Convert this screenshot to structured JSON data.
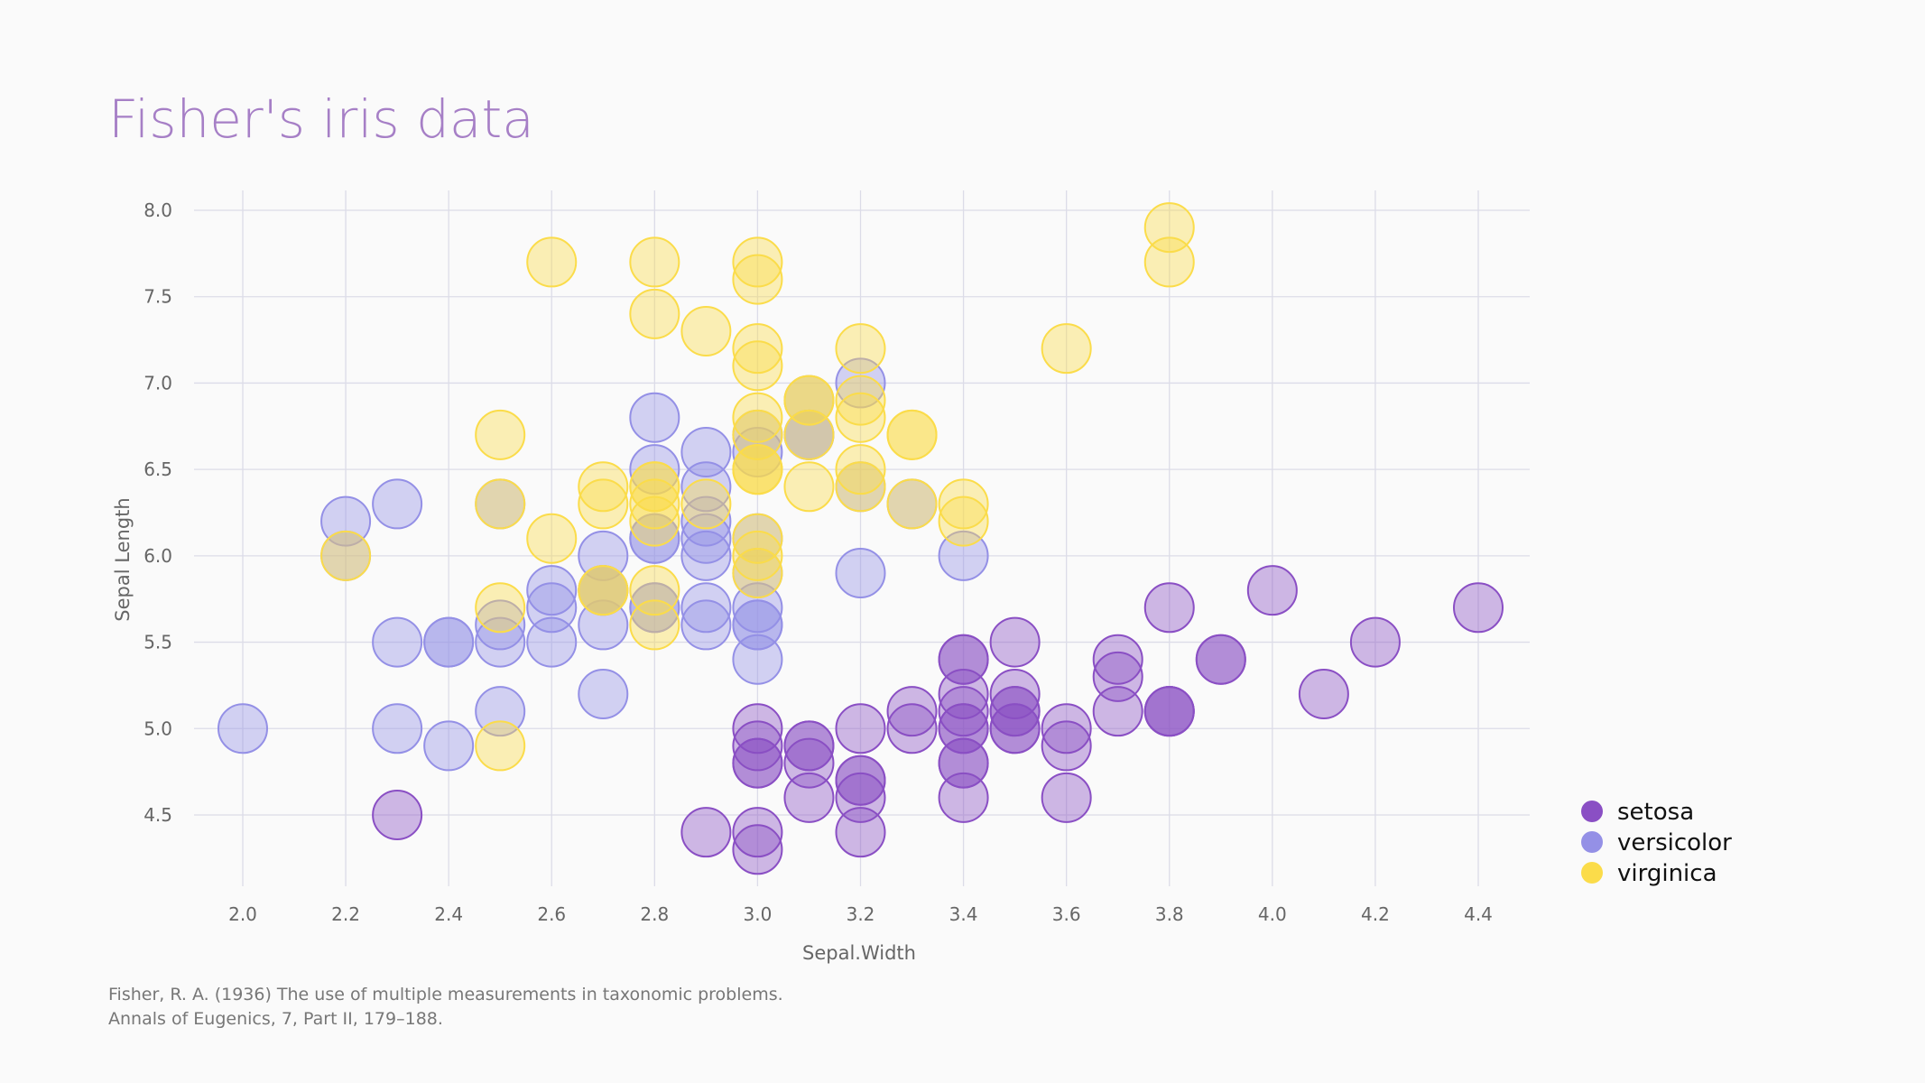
{
  "chart_data": {
    "type": "scatter",
    "title": "Fisher's iris data",
    "xlabel": "Sepal.Width",
    "ylabel": "Sepal Length",
    "xlim": [
      1.9,
      4.5
    ],
    "ylim": [
      4.1,
      8.1
    ],
    "xticks": [
      "2.0",
      "2.2",
      "2.4",
      "2.6",
      "2.8",
      "3.0",
      "3.2",
      "3.4",
      "3.6",
      "3.8",
      "4.0",
      "4.2",
      "4.4"
    ],
    "yticks": [
      "4.5",
      "5.0",
      "5.5",
      "6.0",
      "6.5",
      "7.0",
      "7.5",
      "8.0"
    ],
    "grid": true,
    "legend_position": "right",
    "series": [
      {
        "name": "setosa",
        "color": "#8a4fc4",
        "points": [
          [
            3.5,
            5.1
          ],
          [
            3.0,
            4.9
          ],
          [
            3.2,
            4.7
          ],
          [
            3.1,
            4.6
          ],
          [
            3.6,
            5.0
          ],
          [
            3.9,
            5.4
          ],
          [
            3.4,
            4.6
          ],
          [
            3.4,
            5.0
          ],
          [
            2.9,
            4.4
          ],
          [
            3.1,
            4.9
          ],
          [
            3.7,
            5.4
          ],
          [
            3.4,
            4.8
          ],
          [
            3.0,
            4.8
          ],
          [
            3.0,
            4.3
          ],
          [
            4.0,
            5.8
          ],
          [
            4.4,
            5.7
          ],
          [
            3.9,
            5.4
          ],
          [
            3.5,
            5.1
          ],
          [
            3.8,
            5.7
          ],
          [
            3.8,
            5.1
          ],
          [
            3.4,
            5.4
          ],
          [
            3.7,
            5.1
          ],
          [
            3.6,
            4.6
          ],
          [
            3.3,
            5.1
          ],
          [
            3.4,
            4.8
          ],
          [
            3.0,
            5.0
          ],
          [
            3.4,
            5.0
          ],
          [
            3.5,
            5.2
          ],
          [
            3.4,
            5.2
          ],
          [
            3.2,
            4.7
          ],
          [
            3.1,
            4.8
          ],
          [
            3.4,
            5.4
          ],
          [
            4.1,
            5.2
          ],
          [
            4.2,
            5.5
          ],
          [
            3.1,
            4.9
          ],
          [
            3.2,
            5.0
          ],
          [
            3.5,
            5.5
          ],
          [
            3.6,
            4.9
          ],
          [
            3.0,
            4.4
          ],
          [
            3.4,
            5.1
          ],
          [
            3.5,
            5.0
          ],
          [
            2.3,
            4.5
          ],
          [
            3.2,
            4.4
          ],
          [
            3.5,
            5.0
          ],
          [
            3.8,
            5.1
          ],
          [
            3.0,
            4.8
          ],
          [
            3.8,
            5.1
          ],
          [
            3.2,
            4.6
          ],
          [
            3.7,
            5.3
          ],
          [
            3.3,
            5.0
          ]
        ]
      },
      {
        "name": "versicolor",
        "color": "#9490e6",
        "points": [
          [
            3.2,
            7.0
          ],
          [
            3.2,
            6.4
          ],
          [
            3.1,
            6.9
          ],
          [
            2.3,
            5.5
          ],
          [
            2.8,
            6.5
          ],
          [
            2.8,
            5.7
          ],
          [
            3.3,
            6.3
          ],
          [
            2.4,
            4.9
          ],
          [
            2.9,
            6.6
          ],
          [
            2.7,
            5.2
          ],
          [
            2.0,
            5.0
          ],
          [
            3.0,
            5.9
          ],
          [
            2.2,
            6.0
          ],
          [
            2.9,
            6.1
          ],
          [
            2.9,
            5.6
          ],
          [
            3.1,
            6.7
          ],
          [
            3.0,
            5.6
          ],
          [
            2.7,
            5.8
          ],
          [
            2.2,
            6.2
          ],
          [
            2.5,
            5.6
          ],
          [
            3.2,
            5.9
          ],
          [
            2.8,
            6.1
          ],
          [
            2.5,
            6.3
          ],
          [
            2.8,
            6.1
          ],
          [
            2.9,
            6.4
          ],
          [
            3.0,
            6.6
          ],
          [
            2.8,
            6.8
          ],
          [
            3.0,
            6.7
          ],
          [
            2.9,
            6.0
          ],
          [
            2.6,
            5.7
          ],
          [
            2.4,
            5.5
          ],
          [
            2.4,
            5.5
          ],
          [
            2.7,
            5.8
          ],
          [
            2.7,
            6.0
          ],
          [
            3.0,
            5.4
          ],
          [
            3.4,
            6.0
          ],
          [
            3.1,
            6.7
          ],
          [
            2.3,
            6.3
          ],
          [
            3.0,
            5.6
          ],
          [
            2.5,
            5.5
          ],
          [
            2.6,
            5.5
          ],
          [
            3.0,
            6.1
          ],
          [
            2.6,
            5.8
          ],
          [
            2.3,
            5.0
          ],
          [
            2.7,
            5.6
          ],
          [
            3.0,
            5.7
          ],
          [
            2.9,
            5.7
          ],
          [
            2.9,
            6.2
          ],
          [
            2.5,
            5.1
          ],
          [
            2.8,
            5.7
          ]
        ]
      },
      {
        "name": "virginica",
        "color": "#fbdc4a",
        "points": [
          [
            3.3,
            6.3
          ],
          [
            2.7,
            5.8
          ],
          [
            3.0,
            7.1
          ],
          [
            2.9,
            6.3
          ],
          [
            3.0,
            6.5
          ],
          [
            3.0,
            7.6
          ],
          [
            2.5,
            4.9
          ],
          [
            2.9,
            7.3
          ],
          [
            2.5,
            6.7
          ],
          [
            3.6,
            7.2
          ],
          [
            3.2,
            6.5
          ],
          [
            2.7,
            6.4
          ],
          [
            3.0,
            6.8
          ],
          [
            2.5,
            5.7
          ],
          [
            2.8,
            5.8
          ],
          [
            3.2,
            6.4
          ],
          [
            3.0,
            6.5
          ],
          [
            3.8,
            7.7
          ],
          [
            2.6,
            7.7
          ],
          [
            2.2,
            6.0
          ],
          [
            3.2,
            6.9
          ],
          [
            2.8,
            5.6
          ],
          [
            2.8,
            7.7
          ],
          [
            2.7,
            6.3
          ],
          [
            3.3,
            6.7
          ],
          [
            3.2,
            7.2
          ],
          [
            2.8,
            6.2
          ],
          [
            3.0,
            6.1
          ],
          [
            2.8,
            6.4
          ],
          [
            3.0,
            7.2
          ],
          [
            2.8,
            7.4
          ],
          [
            3.8,
            7.9
          ],
          [
            2.8,
            6.4
          ],
          [
            2.8,
            6.3
          ],
          [
            2.6,
            6.1
          ],
          [
            3.0,
            7.7
          ],
          [
            3.4,
            6.3
          ],
          [
            3.1,
            6.4
          ],
          [
            3.0,
            6.0
          ],
          [
            3.1,
            6.9
          ],
          [
            3.1,
            6.7
          ],
          [
            3.1,
            6.9
          ],
          [
            2.7,
            5.8
          ],
          [
            3.2,
            6.8
          ],
          [
            3.3,
            6.7
          ],
          [
            3.0,
            6.7
          ],
          [
            2.5,
            6.3
          ],
          [
            3.0,
            6.5
          ],
          [
            3.4,
            6.2
          ],
          [
            3.0,
            5.9
          ]
        ]
      }
    ]
  },
  "footer": {
    "line1": "Fisher, R. A. (1936) The use of multiple measurements in taxonomic problems.",
    "line2": "Annals of Eugenics, 7, Part II, 179–188."
  }
}
